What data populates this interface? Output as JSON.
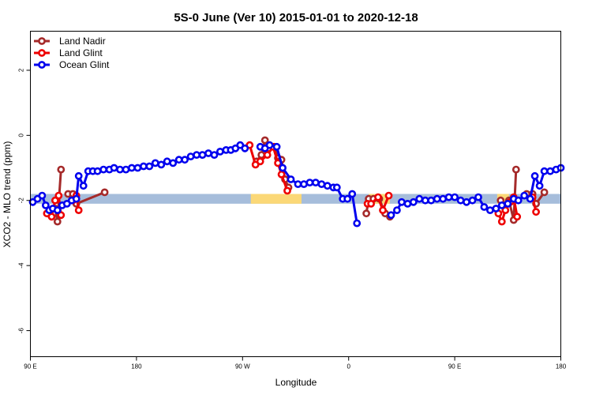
{
  "chart_data": {
    "type": "line",
    "title": "5S-0 June (Ver 10)   2015-01-01 to 2020-12-18",
    "xlabel": "Longitude",
    "ylabel": "XCO2 - MLO trend (ppm)",
    "x_ticks": [
      {
        "value": 90,
        "label": "90 E"
      },
      {
        "value": 180,
        "label": "180"
      },
      {
        "value": 270,
        "label": "90 W"
      },
      {
        "value": 360,
        "label": "0"
      },
      {
        "value": 450,
        "label": "90 E"
      },
      {
        "value": 540,
        "label": "180"
      }
    ],
    "y_ticks": [
      2,
      0,
      -2,
      -4,
      -6
    ],
    "xlim": [
      90,
      540
    ],
    "ylim": [
      -6.8,
      3.2
    ],
    "legend_position": "top-left",
    "band": {
      "y_low": -2.1,
      "y_high": -1.8,
      "color": "#a6bddb"
    },
    "band_highlights": [
      {
        "x_start": 277,
        "x_end": 320,
        "color": "#fbd877"
      },
      {
        "x_start": 377,
        "x_end": 395,
        "color": "#fbd877"
      },
      {
        "x_start": 486,
        "x_end": 496,
        "color": "#fbd877"
      }
    ],
    "series": [
      {
        "name": "Land Nadir",
        "color": "#a52a2a",
        "segments": [
          [
            [
              105,
              -2.4
            ],
            [
              107,
              -2.3
            ],
            [
              111,
              -2.25
            ],
            [
              113,
              -2.65
            ],
            [
              116,
              -1.05
            ]
          ],
          [
            [
              122,
              -1.8
            ],
            [
              126,
              -1.8
            ],
            [
              129,
              -2.1
            ],
            [
              153,
              -1.75
            ]
          ],
          [
            [
              282,
              -0.8
            ],
            [
              286,
              -0.6
            ],
            [
              289,
              -0.15
            ],
            [
              292,
              -0.4
            ],
            [
              297,
              -0.35
            ],
            [
              300,
              -0.7
            ],
            [
              303,
              -0.75
            ],
            [
              306,
              -1.35
            ],
            [
              309,
              -1.6
            ]
          ],
          [
            [
              375,
              -2.4
            ],
            [
              377,
              -1.95
            ],
            [
              381,
              -1.95
            ],
            [
              386,
              -1.95
            ],
            [
              391,
              -2.4
            ],
            [
              395,
              -2.5
            ]
          ],
          [
            [
              489,
              -2.0
            ],
            [
              493,
              -2.15
            ],
            [
              496,
              -2.0
            ],
            [
              500,
              -2.6
            ],
            [
              502,
              -1.05
            ]
          ],
          [
            [
              511,
              -1.8
            ],
            [
              516,
              -1.8
            ],
            [
              519,
              -2.1
            ],
            [
              526,
              -1.75
            ]
          ]
        ]
      },
      {
        "name": "Land Glint",
        "color": "#ee0000",
        "segments": [
          [
            [
              104,
              -2.4
            ],
            [
              108,
              -2.5
            ],
            [
              111,
              -2.0
            ],
            [
              114,
              -1.85
            ],
            [
              116,
              -2.45
            ]
          ],
          [
            [
              126,
              -2.0
            ],
            [
              129,
              -1.85
            ],
            [
              131,
              -2.3
            ]
          ],
          [
            [
              276,
              -0.3
            ],
            [
              281,
              -0.9
            ],
            [
              285,
              -0.8
            ],
            [
              291,
              -0.6
            ],
            [
              296,
              -0.35
            ],
            [
              300,
              -0.85
            ],
            [
              303,
              -1.2
            ],
            [
              308,
              -1.7
            ]
          ],
          [
            [
              376,
              -2.1
            ],
            [
              379,
              -2.1
            ],
            [
              385,
              -1.9
            ],
            [
              389,
              -2.3
            ],
            [
              394,
              -1.85
            ]
          ],
          [
            [
              487,
              -2.4
            ],
            [
              490,
              -2.65
            ],
            [
              493,
              -2.3
            ],
            [
              497,
              -2.05
            ],
            [
              500,
              -1.9
            ],
            [
              503,
              -2.5
            ]
          ],
          [
            [
              516,
              -1.9
            ],
            [
              519,
              -2.35
            ]
          ]
        ]
      },
      {
        "name": "Ocean Glint",
        "color": "#0000ee",
        "segments": [
          [
            [
              92,
              -2.05
            ],
            [
              96,
              -1.95
            ],
            [
              100,
              -1.85
            ],
            [
              103,
              -2.15
            ],
            [
              106,
              -2.3
            ],
            [
              109,
              -2.25
            ],
            [
              113,
              -2.3
            ],
            [
              117,
              -2.15
            ],
            [
              121,
              -2.1
            ],
            [
              125,
              -2.0
            ],
            [
              129,
              -1.95
            ],
            [
              131,
              -1.25
            ],
            [
              135,
              -1.55
            ],
            [
              139,
              -1.1
            ],
            [
              143,
              -1.1
            ],
            [
              147,
              -1.1
            ],
            [
              152,
              -1.05
            ],
            [
              157,
              -1.05
            ],
            [
              161,
              -1.0
            ],
            [
              166,
              -1.05
            ],
            [
              171,
              -1.05
            ],
            [
              176,
              -1.0
            ],
            [
              181,
              -1.0
            ],
            [
              186,
              -0.95
            ],
            [
              191,
              -0.95
            ],
            [
              196,
              -0.85
            ],
            [
              201,
              -0.9
            ],
            [
              206,
              -0.8
            ],
            [
              211,
              -0.85
            ],
            [
              216,
              -0.75
            ],
            [
              221,
              -0.75
            ],
            [
              226,
              -0.65
            ],
            [
              231,
              -0.6
            ],
            [
              236,
              -0.6
            ],
            [
              241,
              -0.55
            ],
            [
              246,
              -0.6
            ],
            [
              251,
              -0.5
            ],
            [
              256,
              -0.45
            ],
            [
              260,
              -0.45
            ],
            [
              264,
              -0.4
            ],
            [
              268,
              -0.3
            ],
            [
              272,
              -0.4
            ]
          ],
          [
            [
              285,
              -0.35
            ],
            [
              289,
              -0.4
            ],
            [
              293,
              -0.3
            ],
            [
              299,
              -0.35
            ],
            [
              304,
              -1.0
            ],
            [
              311,
              -1.35
            ],
            [
              317,
              -1.5
            ],
            [
              322,
              -1.5
            ],
            [
              327,
              -1.45
            ],
            [
              332,
              -1.45
            ],
            [
              337,
              -1.5
            ],
            [
              342,
              -1.55
            ],
            [
              347,
              -1.6
            ],
            [
              350,
              -1.6
            ],
            [
              355,
              -1.95
            ],
            [
              359,
              -1.95
            ],
            [
              363,
              -1.8
            ],
            [
              367,
              -2.7
            ]
          ],
          [
            [
              396,
              -2.45
            ],
            [
              401,
              -2.3
            ],
            [
              405,
              -2.05
            ],
            [
              410,
              -2.1
            ],
            [
              415,
              -2.05
            ],
            [
              420,
              -1.95
            ],
            [
              425,
              -2.0
            ],
            [
              430,
              -2.0
            ],
            [
              435,
              -1.95
            ],
            [
              440,
              -1.95
            ],
            [
              445,
              -1.9
            ],
            [
              450,
              -1.9
            ],
            [
              455,
              -2.0
            ],
            [
              460,
              -2.05
            ],
            [
              465,
              -2.0
            ],
            [
              470,
              -1.9
            ],
            [
              475,
              -2.2
            ],
            [
              480,
              -2.3
            ],
            [
              485,
              -2.25
            ],
            [
              490,
              -2.15
            ],
            [
              495,
              -2.1
            ],
            [
              500,
              -1.95
            ],
            [
              504,
              -2.0
            ],
            [
              509,
              -1.85
            ],
            [
              514,
              -1.95
            ],
            [
              518,
              -1.25
            ],
            [
              522,
              -1.55
            ],
            [
              526,
              -1.1
            ],
            [
              531,
              -1.1
            ],
            [
              536,
              -1.05
            ],
            [
              540,
              -1.0
            ]
          ]
        ]
      }
    ]
  }
}
